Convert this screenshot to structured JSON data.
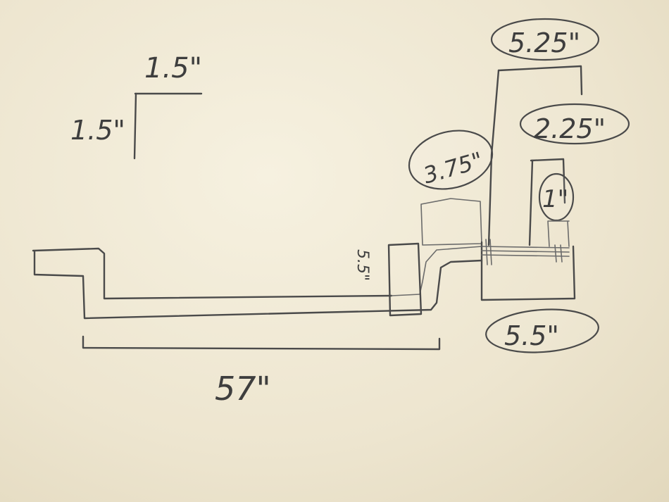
{
  "dimensions": {
    "corner_horizontal": "1.5\"",
    "corner_vertical": "1.5\"",
    "long_run": "57\"",
    "side_height": "5.5\"",
    "box_height": "3.75\"",
    "tall_width": "5.25\"",
    "inner_width": "2.25\"",
    "circle": "1\"",
    "base_width": "5.5\""
  }
}
